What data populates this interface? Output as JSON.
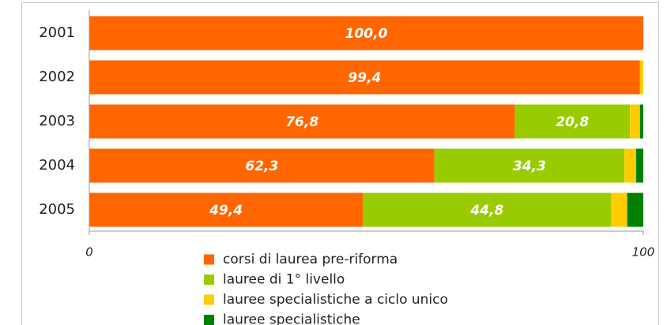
{
  "chart_data": {
    "type": "stacked-bar-horizontal",
    "categories": [
      "2001",
      "2002",
      "2003",
      "2004",
      "2005"
    ],
    "series": [
      {
        "name": "corsi di laurea pre-riforma",
        "color": "#ff6600",
        "values": [
          100.0,
          99.4,
          76.8,
          62.3,
          49.4
        ],
        "value_labels": [
          "100,0",
          "99,4",
          "76,8",
          "62,3",
          "49,4"
        ]
      },
      {
        "name": "lauree di 1° livello",
        "color": "#99cc00",
        "values": [
          0,
          0,
          20.8,
          34.3,
          44.8
        ],
        "value_labels": [
          null,
          null,
          "20,8",
          "34,3",
          "44,8"
        ]
      },
      {
        "name": "lauree specialistiche a ciclo unico",
        "color": "#ffcc00",
        "values": [
          0,
          0.6,
          1.8,
          2.1,
          2.9
        ]
      },
      {
        "name": "lauree specialistiche",
        "color": "#008000",
        "values": [
          0,
          0,
          0.6,
          1.3,
          2.9
        ]
      }
    ],
    "xlim": [
      0,
      100
    ],
    "xticks": [
      0,
      100
    ]
  }
}
